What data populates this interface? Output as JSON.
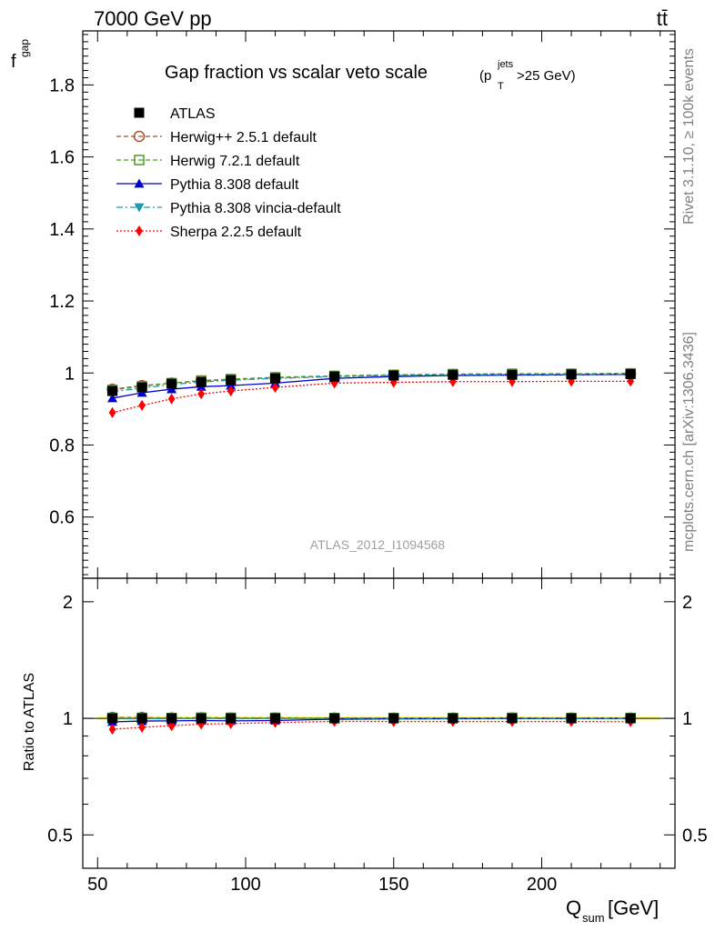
{
  "header": {
    "left": "7000 GeV pp",
    "right": "tt̄"
  },
  "side_text": {
    "rivet": "Rivet 3.1.10, ≥ 100k events",
    "mcplots": "mcplots.cern.ch [arXiv:1306.3436]"
  },
  "colors": {
    "atlas": "#000000",
    "herwigpp": "#a0522d",
    "herwig7": "#4b9a2a",
    "pythia": "#0000cc",
    "vincia": "#1b9aaa",
    "sherpa": "#ff0000",
    "band": "#ffff66"
  },
  "chart_data": {
    "type": "line",
    "title_main": "Gap fraction vs scalar veto scale",
    "title_sub": "(p",
    "title_sub_sup": "jets",
    "title_sub_sub": "T",
    "title_sub_rest": ">25 GeV)",
    "ylabel_main": "f",
    "ylabel_sub": "gap",
    "ylabel_ratio": "Ratio to ATLAS",
    "xlabel_main": "Q",
    "xlabel_sub": "sum",
    "xlabel_rest": " [GeV]",
    "watermark": "ATLAS_2012_I1094568",
    "xlim": [
      45,
      245
    ],
    "ylim": [
      0.43,
      1.95
    ],
    "ratio_ylim": [
      0.41,
      2.3
    ],
    "x": [
      55,
      65,
      75,
      85,
      95,
      110,
      130,
      150,
      170,
      190,
      210,
      230
    ],
    "x_ticks": [
      50,
      100,
      150,
      200
    ],
    "x_tick_labels": [
      "50",
      "100",
      "150",
      "200"
    ],
    "y_ticks": [
      0.6,
      0.8,
      1.0,
      1.2,
      1.4,
      1.6,
      1.8
    ],
    "y_tick_labels": [
      "0.6",
      "0.8",
      "1",
      "1.2",
      "1.4",
      "1.6",
      "1.8"
    ],
    "ratio_ticks": [
      0.5,
      1,
      2
    ],
    "ratio_tick_labels": [
      "0.5",
      "1",
      "2"
    ],
    "series": [
      {
        "key": "atlas",
        "name": "ATLAS",
        "marker": "square-filled",
        "line": "none",
        "values": [
          0.95,
          0.96,
          0.97,
          0.975,
          0.98,
          0.985,
          0.99,
          0.993,
          0.995,
          0.995,
          0.996,
          0.997
        ],
        "ratio": [
          1,
          1,
          1,
          1,
          1,
          1,
          1,
          1,
          1,
          1,
          1,
          1
        ]
      },
      {
        "key": "herwigpp",
        "name": "Herwig++ 2.5.1 default",
        "marker": "circle-open",
        "line": "dashed",
        "values": [
          0.955,
          0.965,
          0.972,
          0.978,
          0.982,
          0.987,
          0.991,
          0.994,
          0.996,
          0.997,
          0.997,
          0.998
        ],
        "ratio": [
          1.005,
          1.005,
          1.002,
          1.003,
          1.002,
          1.002,
          1.001,
          1.001,
          1.001,
          1.002,
          1.001,
          1.001
        ]
      },
      {
        "key": "herwig7",
        "name": "Herwig 7.2.1 default",
        "marker": "square-open",
        "line": "dashed",
        "values": [
          0.953,
          0.963,
          0.972,
          0.979,
          0.983,
          0.988,
          0.992,
          0.995,
          0.997,
          0.998,
          0.998,
          0.999
        ],
        "ratio": [
          1.003,
          1.003,
          1.002,
          1.004,
          1.003,
          1.003,
          1.002,
          1.002,
          1.002,
          1.003,
          1.002,
          1.002
        ]
      },
      {
        "key": "pythia",
        "name": "Pythia 8.308 default",
        "marker": "triangle-up",
        "line": "solid",
        "values": [
          0.93,
          0.945,
          0.955,
          0.962,
          0.965,
          0.972,
          0.985,
          0.99,
          0.993,
          0.994,
          0.995,
          0.996
        ],
        "ratio": [
          0.979,
          0.984,
          0.985,
          0.987,
          0.985,
          0.987,
          0.995,
          0.997,
          0.998,
          0.999,
          0.999,
          0.999
        ]
      },
      {
        "key": "vincia",
        "name": "Pythia 8.308 vincia-default",
        "marker": "triangle-down",
        "line": "dashdot",
        "values": [
          0.948,
          0.958,
          0.968,
          0.975,
          0.98,
          0.985,
          0.99,
          0.993,
          0.995,
          0.996,
          0.996,
          0.997
        ],
        "ratio": [
          0.998,
          0.998,
          0.998,
          1.0,
          1.0,
          1.0,
          1.0,
          1.0,
          1.0,
          1.001,
          1.0,
          1.0
        ]
      },
      {
        "key": "sherpa",
        "name": "Sherpa 2.2.5 default",
        "marker": "diamond",
        "line": "dotted",
        "values": [
          0.89,
          0.91,
          0.928,
          0.942,
          0.95,
          0.96,
          0.972,
          0.974,
          0.976,
          0.976,
          0.977,
          0.977
        ],
        "ratio": [
          0.937,
          0.948,
          0.957,
          0.966,
          0.969,
          0.975,
          0.982,
          0.981,
          0.981,
          0.981,
          0.981,
          0.98
        ]
      }
    ]
  }
}
